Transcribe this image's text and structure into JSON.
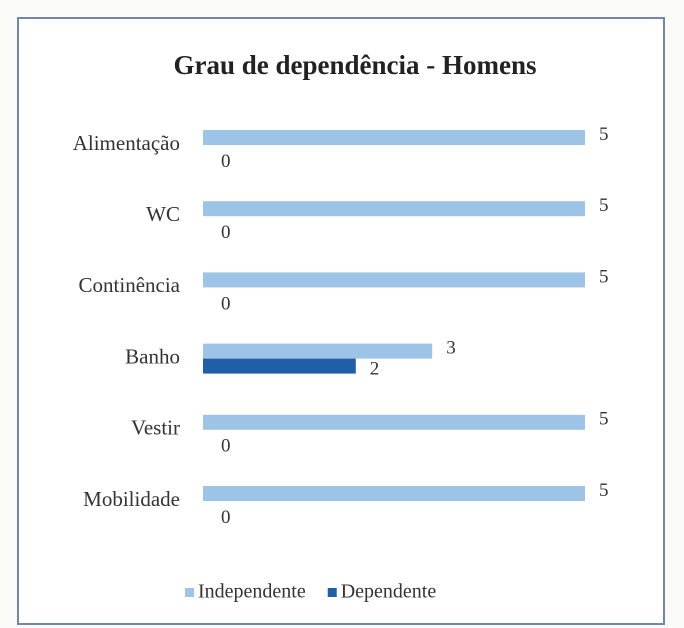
{
  "chart_data": {
    "type": "hbar",
    "title": "Grau de dependência - Homens",
    "categories": [
      "Alimentação",
      "WC",
      "Continência",
      "Banho",
      "Vestir",
      "Mobilidade"
    ],
    "series": [
      {
        "name": "Independente",
        "color": "#9dc3e6",
        "values": [
          5,
          5,
          5,
          3,
          5,
          5
        ]
      },
      {
        "name": "Dependente",
        "color": "#1f5fa8",
        "values": [
          0,
          0,
          0,
          2,
          0,
          0
        ]
      }
    ],
    "xlim": [
      0,
      5
    ],
    "legend": "bottom"
  }
}
